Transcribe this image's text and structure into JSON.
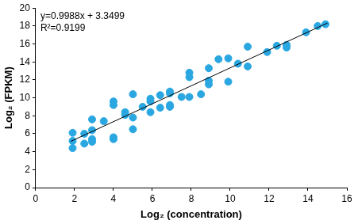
{
  "chart_data": {
    "type": "scatter",
    "x_label": "Log₂ (concentration)",
    "y_label": "Log₂ (FPKM)",
    "annotations": [
      "y=0.9988x + 3.3499",
      "R²=0.9199"
    ],
    "x": [
      1.9,
      1.9,
      1.9,
      2.5,
      2.5,
      2.9,
      2.9,
      2.9,
      2.9,
      3.5,
      4,
      4,
      4,
      4,
      4.6,
      4.6,
      5,
      5,
      5,
      5.5,
      5.9,
      5.9,
      5.9,
      6.4,
      6.4,
      6.9,
      6.9,
      6.9,
      6.9,
      7.5,
      7.9,
      7.9,
      7.9,
      8.5,
      8.9,
      8.9,
      8.9,
      9.4,
      9.9,
      9.9,
      10.4,
      10.9,
      10.9,
      11.9,
      12.4,
      12.9,
      12.9,
      13.9,
      14.5,
      14.9
    ],
    "values": [
      6.1,
      5.2,
      4.4,
      6.0,
      4.9,
      7.6,
      6.4,
      5.4,
      5.1,
      7.4,
      9.6,
      9.2,
      5.6,
      5.4,
      8.4,
      8.1,
      10.4,
      7.8,
      6.5,
      9.0,
      9.9,
      9.6,
      8.4,
      10.3,
      8.9,
      10.7,
      10.5,
      9.2,
      9.0,
      10.1,
      12.8,
      12.3,
      10.1,
      10.4,
      13.3,
      11.9,
      11.5,
      14.3,
      14.4,
      11.8,
      13.8,
      15.7,
      13.5,
      15.1,
      15.8,
      15.9,
      15.6,
      17.3,
      18.0,
      18.2
    ],
    "color": "#2aa7e1",
    "marker": "circle",
    "fit": {
      "x": [
        1.8,
        15
      ],
      "y": [
        5.15,
        18.33
      ],
      "color": "#000000",
      "line_style": "solid"
    },
    "xlim": [
      0,
      16
    ],
    "xticks": [
      0,
      2,
      4,
      6,
      8,
      10,
      12,
      14,
      16
    ],
    "ylim": [
      0,
      20
    ],
    "yticks": [
      0,
      2,
      4,
      6,
      8,
      10,
      12,
      14,
      16,
      18,
      20
    ],
    "grid": false
  }
}
